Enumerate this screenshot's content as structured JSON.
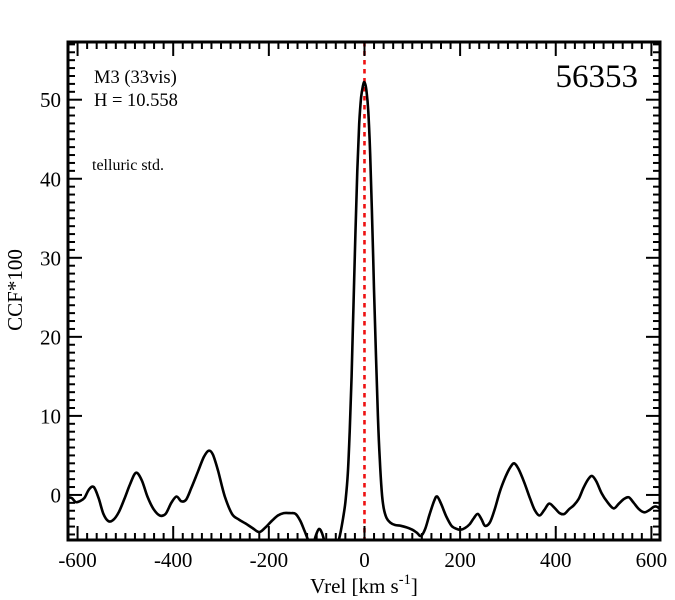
{
  "title": "56353",
  "annotations": {
    "cluster": "M3 (33vis)",
    "magnitude": "H = 10.558",
    "telluric": "telluric std."
  },
  "axis": {
    "x_label_prefix": "Vrel [km s",
    "x_label_sup": "-1",
    "x_label_suffix": "]",
    "y_label": "CCF*100"
  },
  "colors": {
    "curve": "#000000",
    "frame": "#000000",
    "marker_line": "#ee1111",
    "telluric_text": "#4b0082",
    "text": "#000000",
    "background": "#ffffff"
  },
  "chart_data": {
    "type": "line",
    "title": "56353",
    "xlabel": "Vrel [km s-1]",
    "ylabel": "CCF*100",
    "xlim": [
      -620,
      618
    ],
    "ylim": [
      -5.7,
      57.3
    ],
    "x_major_ticks": [
      -600,
      -400,
      -200,
      0,
      200,
      400,
      600
    ],
    "x_minor_step": 20,
    "y_major_ticks": [
      0,
      10,
      20,
      30,
      40,
      50
    ],
    "y_minor_step": 1,
    "grid": false,
    "legend": false,
    "marker_line_x": 0,
    "series": [
      {
        "name": "CCF",
        "color": "#000000",
        "points": [
          [
            -620,
            -0.3
          ],
          [
            -612,
            -0.4
          ],
          [
            -604,
            -0.9
          ],
          [
            -596,
            -0.8
          ],
          [
            -586,
            -0.4
          ],
          [
            -576,
            0.7
          ],
          [
            -566,
            1.0
          ],
          [
            -556,
            -0.4
          ],
          [
            -546,
            -2.4
          ],
          [
            -536,
            -3.3
          ],
          [
            -526,
            -3.2
          ],
          [
            -514,
            -2.2
          ],
          [
            -502,
            -0.5
          ],
          [
            -490,
            1.4
          ],
          [
            -478,
            2.8
          ],
          [
            -466,
            1.9
          ],
          [
            -454,
            -0.2
          ],
          [
            -441,
            -1.8
          ],
          [
            -428,
            -2.6
          ],
          [
            -416,
            -2.4
          ],
          [
            -404,
            -1.0
          ],
          [
            -393,
            -0.2
          ],
          [
            -383,
            -0.8
          ],
          [
            -373,
            -0.6
          ],
          [
            -362,
            0.9
          ],
          [
            -348,
            3.0
          ],
          [
            -336,
            4.8
          ],
          [
            -326,
            5.6
          ],
          [
            -317,
            5.1
          ],
          [
            -306,
            3.0
          ],
          [
            -292,
            -0.2
          ],
          [
            -277,
            -2.4
          ],
          [
            -263,
            -3.1
          ],
          [
            -249,
            -3.6
          ],
          [
            -234,
            -4.2
          ],
          [
            -220,
            -4.7
          ],
          [
            -207,
            -4.1
          ],
          [
            -194,
            -3.3
          ],
          [
            -181,
            -2.6
          ],
          [
            -169,
            -2.3
          ],
          [
            -156,
            -2.3
          ],
          [
            -144,
            -2.4
          ],
          [
            -134,
            -3.3
          ],
          [
            -125,
            -4.6
          ],
          [
            -117,
            -5.8
          ],
          [
            -109,
            -6.4
          ],
          [
            -101,
            -5.0
          ],
          [
            -95,
            -4.3
          ],
          [
            -89,
            -4.8
          ],
          [
            -81,
            -6.3
          ],
          [
            -71,
            -7.3
          ],
          [
            -61,
            -7.1
          ],
          [
            -52,
            -5.3
          ],
          [
            -45,
            -3.0
          ],
          [
            -40,
            -0.9
          ],
          [
            -35,
            2.5
          ],
          [
            -31,
            8.0
          ],
          [
            -27,
            15.0
          ],
          [
            -23,
            24.0
          ],
          [
            -19,
            33.0
          ],
          [
            -15,
            41.0
          ],
          [
            -11,
            47.0
          ],
          [
            -7,
            50.3
          ],
          [
            -3,
            51.8
          ],
          [
            0,
            52.2
          ],
          [
            4,
            51.2
          ],
          [
            8,
            48.5
          ],
          [
            12,
            43.0
          ],
          [
            16,
            35.0
          ],
          [
            20,
            26.0
          ],
          [
            24,
            17.5
          ],
          [
            28,
            10.0
          ],
          [
            32,
            4.5
          ],
          [
            36,
            0.5
          ],
          [
            40,
            -1.6
          ],
          [
            46,
            -2.9
          ],
          [
            54,
            -3.5
          ],
          [
            64,
            -3.8
          ],
          [
            76,
            -3.9
          ],
          [
            88,
            -4.1
          ],
          [
            100,
            -4.4
          ],
          [
            110,
            -4.8
          ],
          [
            118,
            -5.2
          ],
          [
            127,
            -4.3
          ],
          [
            136,
            -2.5
          ],
          [
            146,
            -0.7
          ],
          [
            152,
            -0.2
          ],
          [
            160,
            -1.1
          ],
          [
            171,
            -2.7
          ],
          [
            182,
            -3.9
          ],
          [
            193,
            -4.3
          ],
          [
            201,
            -4.4
          ],
          [
            210,
            -4.2
          ],
          [
            220,
            -3.7
          ],
          [
            229,
            -2.9
          ],
          [
            237,
            -2.4
          ],
          [
            245,
            -3.1
          ],
          [
            252,
            -3.9
          ],
          [
            262,
            -3.5
          ],
          [
            272,
            -1.9
          ],
          [
            283,
            0.4
          ],
          [
            295,
            2.3
          ],
          [
            305,
            3.5
          ],
          [
            313,
            4.0
          ],
          [
            322,
            3.3
          ],
          [
            334,
            1.6
          ],
          [
            346,
            -0.4
          ],
          [
            356,
            -1.9
          ],
          [
            366,
            -2.6
          ],
          [
            376,
            -1.9
          ],
          [
            386,
            -1.1
          ],
          [
            397,
            -1.6
          ],
          [
            408,
            -2.3
          ],
          [
            418,
            -2.4
          ],
          [
            428,
            -1.8
          ],
          [
            438,
            -1.3
          ],
          [
            448,
            -0.5
          ],
          [
            458,
            0.9
          ],
          [
            468,
            2.0
          ],
          [
            476,
            2.4
          ],
          [
            485,
            1.7
          ],
          [
            496,
            0.2
          ],
          [
            508,
            -0.9
          ],
          [
            521,
            -1.7
          ],
          [
            532,
            -1.1
          ],
          [
            543,
            -0.5
          ],
          [
            553,
            -0.3
          ],
          [
            563,
            -1.0
          ],
          [
            574,
            -1.8
          ],
          [
            585,
            -2.2
          ],
          [
            596,
            -1.9
          ],
          [
            605,
            -1.5
          ],
          [
            612,
            -1.5
          ],
          [
            618,
            -1.8
          ]
        ]
      }
    ]
  }
}
